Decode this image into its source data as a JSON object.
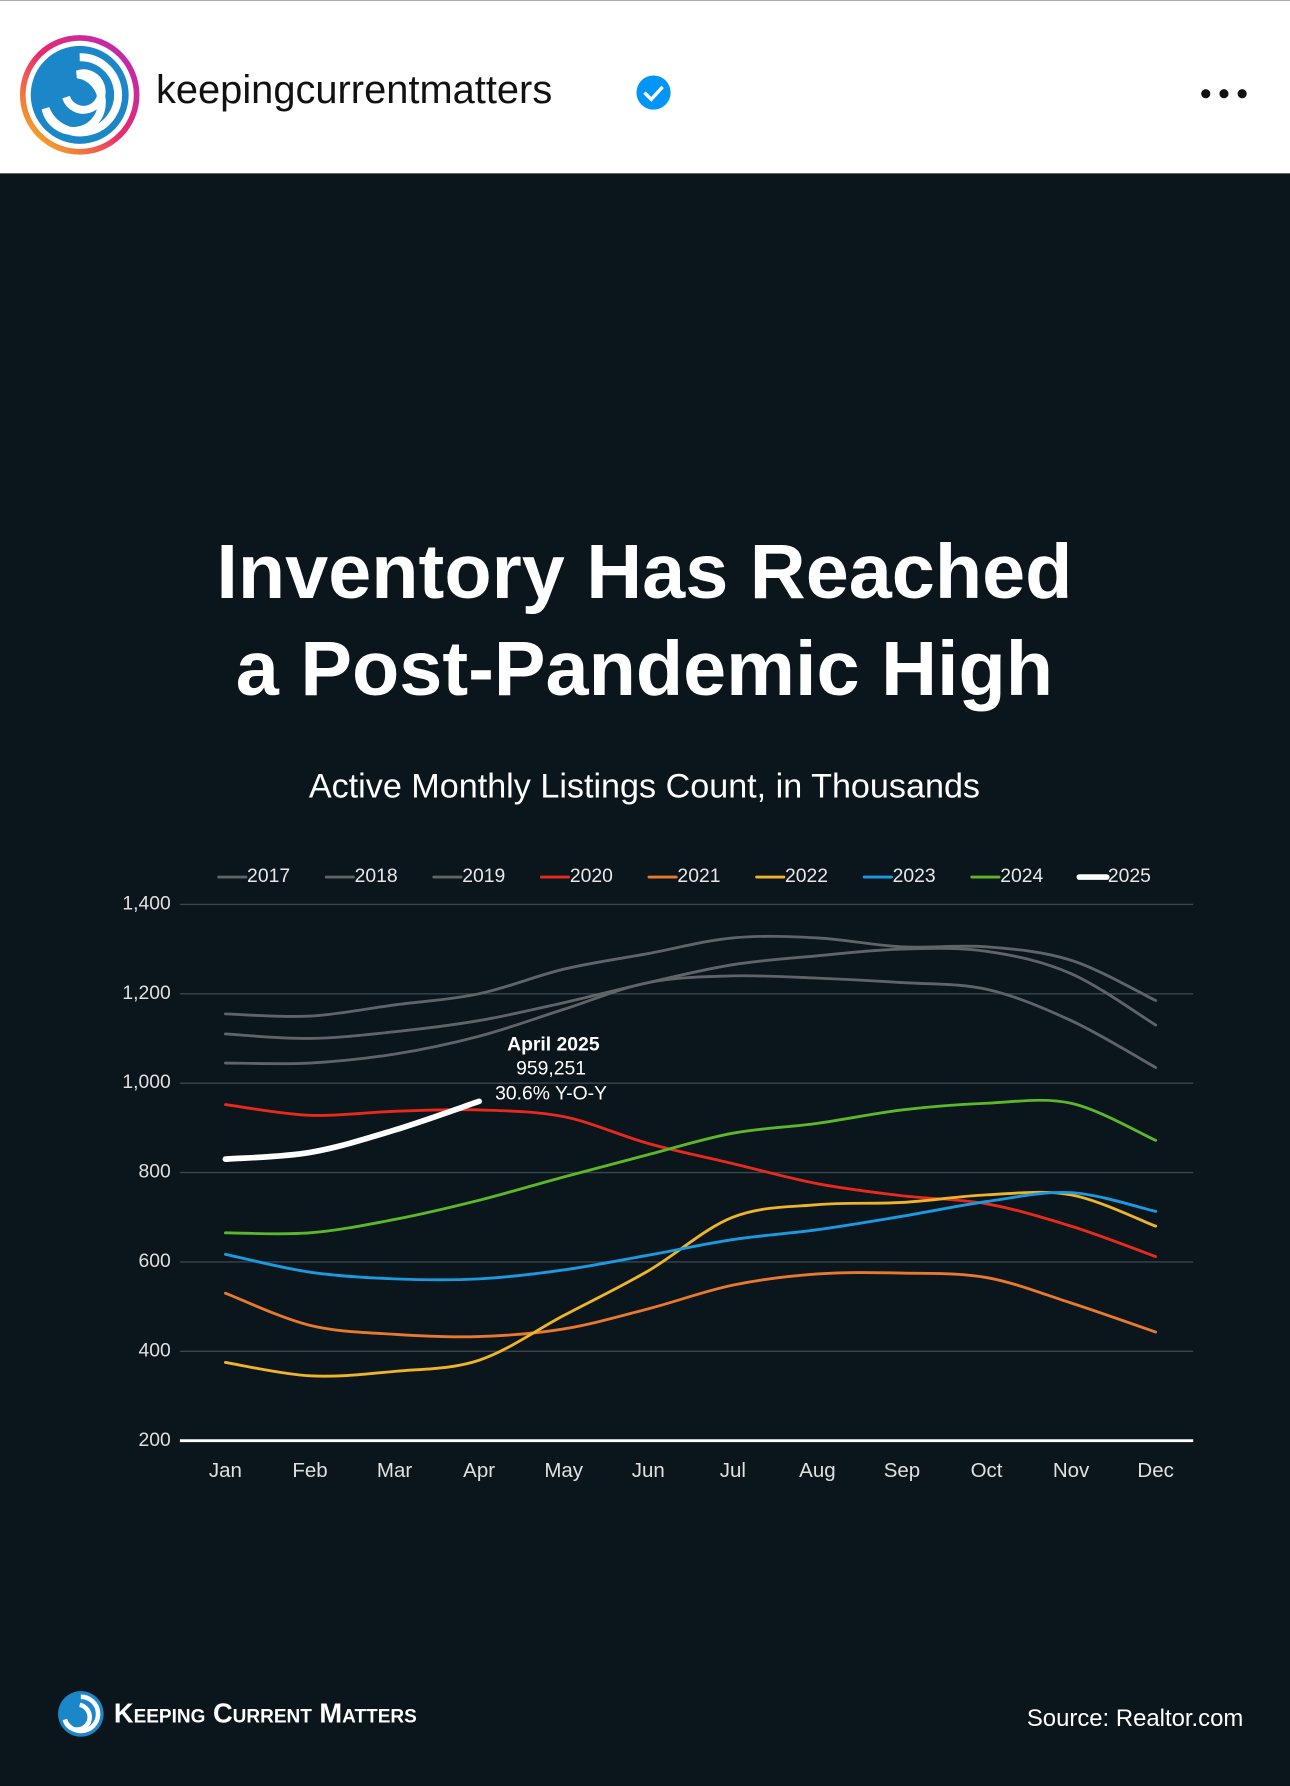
{
  "header": {
    "username": "keepingcurrentmatters"
  },
  "chart_data": {
    "type": "line",
    "title": [
      "Inventory Has Reached",
      "a Post-Pandemic High"
    ],
    "subtitle": "Active Monthly Listings Count, in Thousands",
    "categories": [
      "Jan",
      "Feb",
      "Mar",
      "Apr",
      "May",
      "Jun",
      "Jul",
      "Aug",
      "Sep",
      "Oct",
      "Nov",
      "Dec"
    ],
    "ylim": [
      200,
      1400
    ],
    "yticks": [
      200,
      400,
      600,
      800,
      {
        "value": 1000,
        "label": "1,000"
      },
      {
        "value": 1200,
        "label": "1,200"
      },
      {
        "value": 1400,
        "label": "1,400"
      }
    ],
    "grid": true,
    "legend": "top",
    "series": [
      {
        "name": "2017",
        "color": "#5f6468",
        "values": [
          1155,
          1150,
          1175,
          1200,
          1255,
          1290,
          1325,
          1325,
          1305,
          1305,
          1275,
          1185
        ]
      },
      {
        "name": "2018",
        "color": "#5f6468",
        "values": [
          1110,
          1100,
          1115,
          1140,
          1180,
          1225,
          1265,
          1285,
          1300,
          1295,
          1245,
          1130
        ]
      },
      {
        "name": "2019",
        "color": "#5f6468",
        "values": [
          1045,
          1045,
          1065,
          1105,
          1165,
          1225,
          1240,
          1235,
          1225,
          1210,
          1140,
          1035
        ]
      },
      {
        "name": "2020",
        "color": "#e8291c",
        "values": [
          952,
          928,
          937,
          940,
          925,
          865,
          820,
          775,
          748,
          730,
          680,
          612
        ]
      },
      {
        "name": "2021",
        "color": "#e8792e",
        "values": [
          530,
          458,
          438,
          433,
          450,
          495,
          548,
          573,
          575,
          565,
          508,
          443
        ]
      },
      {
        "name": "2022",
        "color": "#f0b429",
        "values": [
          375,
          345,
          355,
          380,
          480,
          580,
          700,
          728,
          733,
          750,
          750,
          680
        ]
      },
      {
        "name": "2023",
        "color": "#1a9ae0",
        "values": [
          617,
          577,
          562,
          562,
          582,
          615,
          650,
          672,
          702,
          735,
          755,
          713
        ]
      },
      {
        "name": "2024",
        "color": "#5cb82a",
        "values": [
          665,
          665,
          695,
          738,
          790,
          840,
          888,
          910,
          940,
          955,
          955,
          872
        ]
      },
      {
        "name": "2025",
        "color": "#ffffff",
        "values": [
          830,
          845,
          895,
          959.251,
          null,
          null,
          null,
          null,
          null,
          null,
          null,
          null
        ]
      }
    ],
    "annotation": {
      "title": "April 2025",
      "value": "959,251",
      "change": "30.6% Y-O-Y"
    },
    "source": "Source: Realtor.com"
  },
  "footer": {
    "brand": "Keeping Current Matters"
  }
}
